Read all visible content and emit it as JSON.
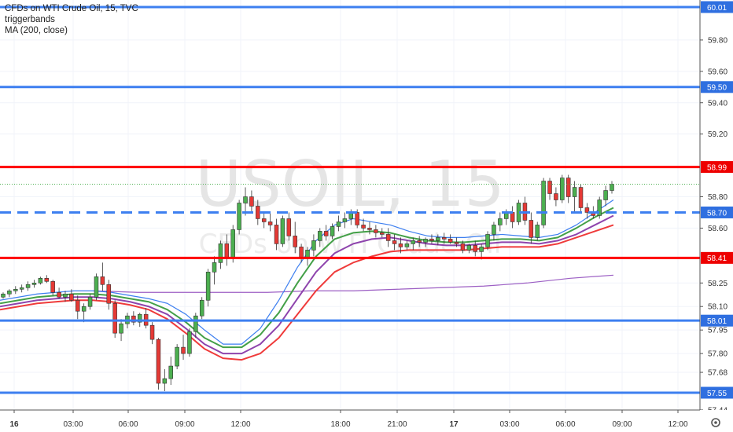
{
  "legend": {
    "title": "CFDs on WTI Crude Oil, 15, TVC",
    "indicator1": "triggerbands",
    "indicator2": "MA (200, close)"
  },
  "watermark": {
    "symbol": "USOIL, 15",
    "description": "CFDs on WTI Crude Oil"
  },
  "colors": {
    "blue_line": "#3d7ff0",
    "red_line": "#ff0000",
    "up_candle": "#4caf50",
    "down_candle": "#e53935",
    "ma200": "#9c5fc4",
    "ema_fast": "#3d7ff0",
    "ema_mid": "#43a047",
    "ema_slow": "#8e44ad",
    "ema_slowest": "#ef3b3b",
    "label_blue": "#2f6fe0",
    "label_red": "#ee0000"
  },
  "chart_data": {
    "type": "candlestick",
    "title": "CFDs on WTI Crude Oil, 15, TVC",
    "ylim": [
      57.41,
      60.06
    ],
    "grid": true,
    "y_ticks": [
      "59.80",
      "59.60",
      "59.40",
      "59.20",
      "58.80",
      "58.60",
      "58.25",
      "58.10",
      "57.95",
      "57.80",
      "57.68",
      "57.44"
    ],
    "x_ticks": [
      "16",
      "03:00",
      "06:00",
      "09:00",
      "12:00",
      "18:00",
      "21:00",
      "17",
      "03:00",
      "06:00",
      "09:00",
      "12:00"
    ],
    "horizontal_lines": [
      {
        "price": 60.01,
        "label": "60.01",
        "color": "blue",
        "style": "solid"
      },
      {
        "price": 59.5,
        "label": "59.50",
        "color": "blue",
        "style": "solid"
      },
      {
        "price": 58.99,
        "label": "58.99",
        "color": "red",
        "style": "solid"
      },
      {
        "price": 58.7,
        "label": "58.70",
        "color": "blue",
        "style": "dashed"
      },
      {
        "price": 58.41,
        "label": "58.41",
        "color": "red",
        "style": "solid"
      },
      {
        "price": 58.01,
        "label": "58.01",
        "color": "blue",
        "style": "solid"
      },
      {
        "price": 57.55,
        "label": "57.55",
        "color": "blue",
        "style": "solid"
      }
    ],
    "last_price": 58.88,
    "ma200": [
      58.2,
      58.19,
      58.19,
      58.19,
      58.19,
      58.2,
      58.2,
      58.21,
      58.22,
      58.23,
      58.25,
      58.28,
      58.3
    ],
    "candles": [
      [
        58.16,
        58.19,
        58.15,
        58.18
      ],
      [
        58.18,
        58.21,
        58.16,
        58.2
      ],
      [
        58.2,
        58.23,
        58.18,
        58.21
      ],
      [
        58.21,
        58.24,
        58.19,
        58.22
      ],
      [
        58.22,
        58.26,
        58.2,
        58.24
      ],
      [
        58.24,
        58.27,
        58.22,
        58.25
      ],
      [
        58.25,
        58.29,
        58.24,
        58.28
      ],
      [
        58.28,
        58.3,
        58.25,
        58.26
      ],
      [
        58.26,
        58.27,
        58.17,
        58.19
      ],
      [
        58.19,
        58.22,
        58.15,
        58.16
      ],
      [
        58.16,
        58.2,
        58.13,
        58.18
      ],
      [
        58.18,
        58.21,
        58.13,
        58.14
      ],
      [
        58.14,
        58.17,
        58.02,
        58.07
      ],
      [
        58.07,
        58.12,
        58.0,
        58.1
      ],
      [
        58.1,
        58.18,
        58.08,
        58.16
      ],
      [
        58.16,
        58.31,
        58.14,
        58.29
      ],
      [
        58.29,
        58.38,
        58.2,
        58.24
      ],
      [
        58.24,
        58.27,
        58.08,
        58.12
      ],
      [
        58.12,
        58.14,
        57.9,
        57.93
      ],
      [
        57.93,
        58.02,
        57.88,
        57.99
      ],
      [
        57.99,
        58.06,
        57.96,
        58.04
      ],
      [
        58.04,
        58.07,
        57.98,
        58.0
      ],
      [
        58.0,
        58.06,
        57.97,
        58.05
      ],
      [
        58.05,
        58.09,
        57.96,
        57.98
      ],
      [
        57.98,
        58.0,
        57.86,
        57.89
      ],
      [
        57.89,
        57.9,
        57.57,
        57.61
      ],
      [
        57.61,
        57.7,
        57.56,
        57.64
      ],
      [
        57.64,
        57.78,
        57.6,
        57.72
      ],
      [
        57.72,
        57.86,
        57.7,
        57.84
      ],
      [
        57.84,
        57.92,
        57.76,
        57.8
      ],
      [
        57.8,
        57.96,
        57.78,
        57.94
      ],
      [
        57.94,
        58.06,
        57.9,
        58.04
      ],
      [
        58.04,
        58.16,
        58.02,
        58.14
      ],
      [
        58.14,
        58.34,
        58.1,
        58.32
      ],
      [
        58.32,
        58.42,
        58.24,
        58.38
      ],
      [
        58.38,
        58.52,
        58.34,
        58.5
      ],
      [
        58.5,
        58.56,
        58.36,
        58.41
      ],
      [
        58.41,
        58.62,
        58.38,
        58.59
      ],
      [
        58.59,
        58.78,
        58.56,
        58.76
      ],
      [
        58.76,
        58.86,
        58.68,
        58.8
      ],
      [
        58.8,
        58.84,
        58.7,
        58.74
      ],
      [
        58.74,
        58.78,
        58.62,
        58.66
      ],
      [
        58.66,
        58.7,
        58.6,
        58.64
      ],
      [
        58.64,
        58.7,
        58.58,
        58.62
      ],
      [
        58.62,
        58.66,
        58.46,
        58.5
      ],
      [
        58.5,
        58.68,
        58.48,
        58.66
      ],
      [
        58.66,
        58.7,
        58.52,
        58.55
      ],
      [
        58.55,
        58.64,
        58.44,
        58.48
      ],
      [
        58.48,
        58.5,
        58.38,
        58.41
      ],
      [
        58.41,
        58.48,
        58.36,
        58.46
      ],
      [
        58.46,
        58.56,
        58.42,
        58.52
      ],
      [
        58.52,
        58.6,
        58.48,
        58.58
      ],
      [
        58.58,
        58.62,
        58.52,
        58.55
      ],
      [
        58.55,
        58.63,
        58.53,
        58.61
      ],
      [
        58.61,
        58.68,
        58.58,
        58.64
      ],
      [
        58.64,
        58.7,
        58.6,
        58.66
      ],
      [
        58.66,
        58.72,
        58.62,
        58.7
      ],
      [
        58.7,
        58.72,
        58.6,
        58.62
      ],
      [
        58.62,
        58.66,
        58.58,
        58.6
      ],
      [
        58.6,
        58.64,
        58.56,
        58.59
      ],
      [
        58.59,
        58.62,
        58.54,
        58.57
      ],
      [
        58.57,
        58.6,
        58.54,
        58.56
      ],
      [
        58.56,
        58.6,
        58.48,
        58.52
      ],
      [
        58.52,
        58.56,
        58.46,
        58.5
      ],
      [
        58.5,
        58.54,
        58.44,
        58.48
      ],
      [
        58.48,
        58.52,
        58.46,
        58.5
      ],
      [
        58.5,
        58.54,
        58.46,
        58.52
      ],
      [
        58.52,
        58.55,
        58.48,
        58.51
      ],
      [
        58.51,
        58.54,
        58.48,
        58.53
      ],
      [
        58.53,
        58.56,
        58.5,
        58.52
      ],
      [
        58.52,
        58.56,
        58.49,
        58.54
      ],
      [
        58.54,
        58.57,
        58.5,
        58.53
      ],
      [
        58.53,
        58.56,
        58.5,
        58.51
      ],
      [
        58.51,
        58.54,
        58.48,
        58.5
      ],
      [
        58.5,
        58.52,
        58.44,
        58.46
      ],
      [
        58.46,
        58.5,
        58.44,
        58.49
      ],
      [
        58.49,
        58.52,
        58.42,
        58.45
      ],
      [
        58.45,
        58.5,
        58.4,
        58.48
      ],
      [
        58.48,
        58.58,
        58.46,
        58.56
      ],
      [
        58.56,
        58.64,
        58.52,
        58.62
      ],
      [
        58.62,
        58.7,
        58.58,
        58.66
      ],
      [
        58.66,
        58.72,
        58.62,
        58.7
      ],
      [
        58.7,
        58.74,
        58.6,
        58.64
      ],
      [
        58.64,
        58.78,
        58.62,
        58.76
      ],
      [
        58.76,
        58.8,
        58.62,
        58.65
      ],
      [
        58.65,
        58.7,
        58.5,
        58.54
      ],
      [
        58.54,
        58.64,
        58.52,
        58.62
      ],
      [
        58.62,
        58.92,
        58.6,
        58.9
      ],
      [
        58.9,
        58.92,
        58.78,
        58.82
      ],
      [
        58.82,
        58.86,
        58.74,
        58.78
      ],
      [
        58.78,
        58.94,
        58.76,
        58.92
      ],
      [
        58.92,
        58.94,
        58.76,
        58.8
      ],
      [
        58.8,
        58.9,
        58.7,
        58.86
      ],
      [
        58.86,
        58.88,
        58.7,
        58.73
      ],
      [
        58.73,
        58.76,
        58.66,
        58.7
      ],
      [
        58.7,
        58.74,
        58.66,
        58.68
      ],
      [
        58.68,
        58.8,
        58.66,
        58.78
      ],
      [
        58.78,
        58.87,
        58.74,
        58.84
      ],
      [
        58.84,
        58.9,
        58.82,
        58.88
      ]
    ],
    "ema_fast": [
      58.14,
      58.16,
      58.18,
      58.19,
      58.2,
      58.2,
      58.19,
      58.17,
      58.15,
      58.12,
      58.05,
      57.95,
      57.86,
      57.86,
      57.96,
      58.14,
      58.35,
      58.52,
      58.62,
      58.66,
      58.64,
      58.62,
      58.58,
      58.55,
      58.54,
      58.54,
      58.55,
      58.56,
      58.55,
      58.54,
      58.56,
      58.62,
      58.7,
      58.78
    ],
    "ema_mid": [
      58.12,
      58.14,
      58.16,
      58.17,
      58.18,
      58.18,
      58.17,
      58.15,
      58.13,
      58.08,
      58.0,
      57.9,
      57.84,
      57.84,
      57.92,
      58.06,
      58.25,
      58.42,
      58.53,
      58.57,
      58.58,
      58.57,
      58.54,
      58.52,
      58.51,
      58.51,
      58.52,
      58.53,
      58.53,
      58.52,
      58.54,
      58.6,
      58.67,
      58.73
    ],
    "ema_slow": [
      58.1,
      58.12,
      58.14,
      58.15,
      58.16,
      58.16,
      58.15,
      58.13,
      58.1,
      58.05,
      57.96,
      57.86,
      57.8,
      57.8,
      57.86,
      57.98,
      58.15,
      58.32,
      58.44,
      58.5,
      58.53,
      58.54,
      58.52,
      58.5,
      58.49,
      58.49,
      58.5,
      58.51,
      58.51,
      58.5,
      58.52,
      58.56,
      58.62,
      58.68
    ],
    "ema_slowest": [
      58.08,
      58.1,
      58.12,
      58.13,
      58.14,
      58.14,
      58.13,
      58.11,
      58.08,
      58.02,
      57.93,
      57.83,
      57.77,
      57.76,
      57.8,
      57.9,
      58.05,
      58.2,
      58.32,
      58.38,
      58.42,
      58.45,
      58.46,
      58.46,
      58.46,
      58.46,
      58.47,
      58.48,
      58.48,
      58.48,
      58.5,
      58.54,
      58.58,
      58.62
    ]
  }
}
